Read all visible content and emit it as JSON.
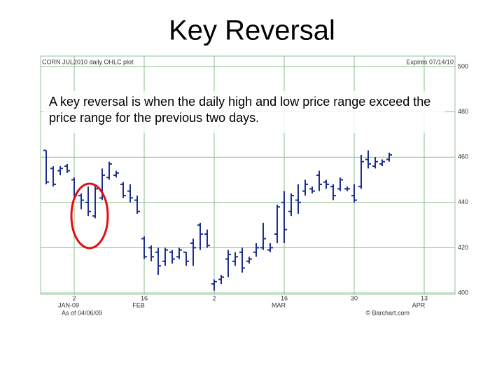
{
  "title": "Key Reversal",
  "chart_data": {
    "type": "ohlc",
    "header_left": "CORN JUL2010 daily OHLC plot",
    "header_right": "Expires 07/14/10",
    "annotation": "A key reversal is when the daily high and low price range exceed the price range for the previous two days.",
    "footer_left": "As of 04/06/09",
    "footer_right": "© Barchart.com",
    "categories": [
      null,
      null,
      null,
      null,
      "2",
      null,
      null,
      null,
      null,
      null,
      null,
      null,
      null,
      null,
      "16",
      null,
      null,
      null,
      null,
      null,
      null,
      null,
      null,
      null,
      "2",
      null,
      null,
      null,
      null,
      null,
      null,
      null,
      null,
      null,
      "16",
      null,
      null,
      null,
      null,
      null,
      null,
      null,
      null,
      null,
      "30",
      null,
      null,
      null,
      null,
      null,
      null,
      null,
      null,
      null,
      "13"
    ],
    "category_months": [
      null,
      null,
      null,
      null,
      "JAN-09",
      null,
      null,
      null,
      null,
      null,
      null,
      null,
      null,
      null,
      "FEB",
      null,
      null,
      null,
      null,
      null,
      null,
      null,
      null,
      null,
      null,
      null,
      null,
      null,
      null,
      null,
      null,
      null,
      null,
      null,
      "MAR",
      null,
      null,
      null,
      null,
      null,
      null,
      null,
      null,
      null,
      null,
      null,
      null,
      null,
      null,
      null,
      null,
      null,
      null,
      null,
      "APR"
    ],
    "color": "#1c2f8c",
    "open": [
      463,
      455,
      454,
      456,
      450,
      443,
      440,
      434,
      442,
      451,
      452,
      448,
      445,
      441,
      424,
      420,
      418,
      414,
      418,
      416,
      418,
      422,
      430,
      426,
      404,
      406,
      415,
      414,
      418,
      414,
      418,
      420,
      419,
      426,
      440,
      436,
      441,
      445,
      446,
      452,
      449,
      447,
      446,
      446,
      443,
      447,
      459,
      456,
      457,
      459,
      null,
      null,
      null,
      null,
      null
    ],
    "high": [
      463,
      456,
      456,
      457,
      451,
      444,
      447,
      448,
      455,
      458,
      454,
      449,
      448,
      443,
      425,
      421,
      420,
      420,
      419,
      420,
      418,
      424,
      431,
      428,
      406,
      408,
      419,
      418,
      420,
      416,
      422,
      431,
      422,
      439,
      445,
      444,
      448,
      450,
      447,
      454,
      450,
      448,
      451,
      447,
      448,
      461,
      463,
      460,
      459,
      462,
      null,
      null,
      null,
      null,
      null
    ],
    "low": [
      448,
      447,
      452,
      453,
      441,
      437,
      434,
      433,
      441,
      450,
      451,
      442,
      440,
      435,
      415,
      414,
      408,
      412,
      413,
      415,
      412,
      412,
      419,
      420,
      401,
      404,
      407,
      412,
      409,
      413,
      416,
      419,
      418,
      422,
      422,
      434,
      435,
      443,
      444,
      445,
      446,
      441,
      445,
      445,
      440,
      446,
      455,
      455,
      456,
      458,
      null,
      null,
      null,
      null,
      null
    ],
    "close": [
      449,
      448,
      455,
      454,
      443,
      441,
      436,
      446,
      452,
      457,
      453,
      443,
      442,
      436,
      416,
      416,
      412,
      419,
      415,
      419,
      414,
      420,
      426,
      421,
      405,
      407,
      417,
      416,
      411,
      415,
      420,
      424,
      420,
      438,
      428,
      443,
      440,
      448,
      445,
      448,
      448,
      443,
      450,
      446,
      441,
      458,
      457,
      458,
      458,
      461,
      null,
      null,
      null,
      null,
      null
    ],
    "ylim": [
      400,
      500
    ],
    "yticks": [
      400,
      420,
      440,
      460,
      480,
      500
    ],
    "grid": true
  }
}
